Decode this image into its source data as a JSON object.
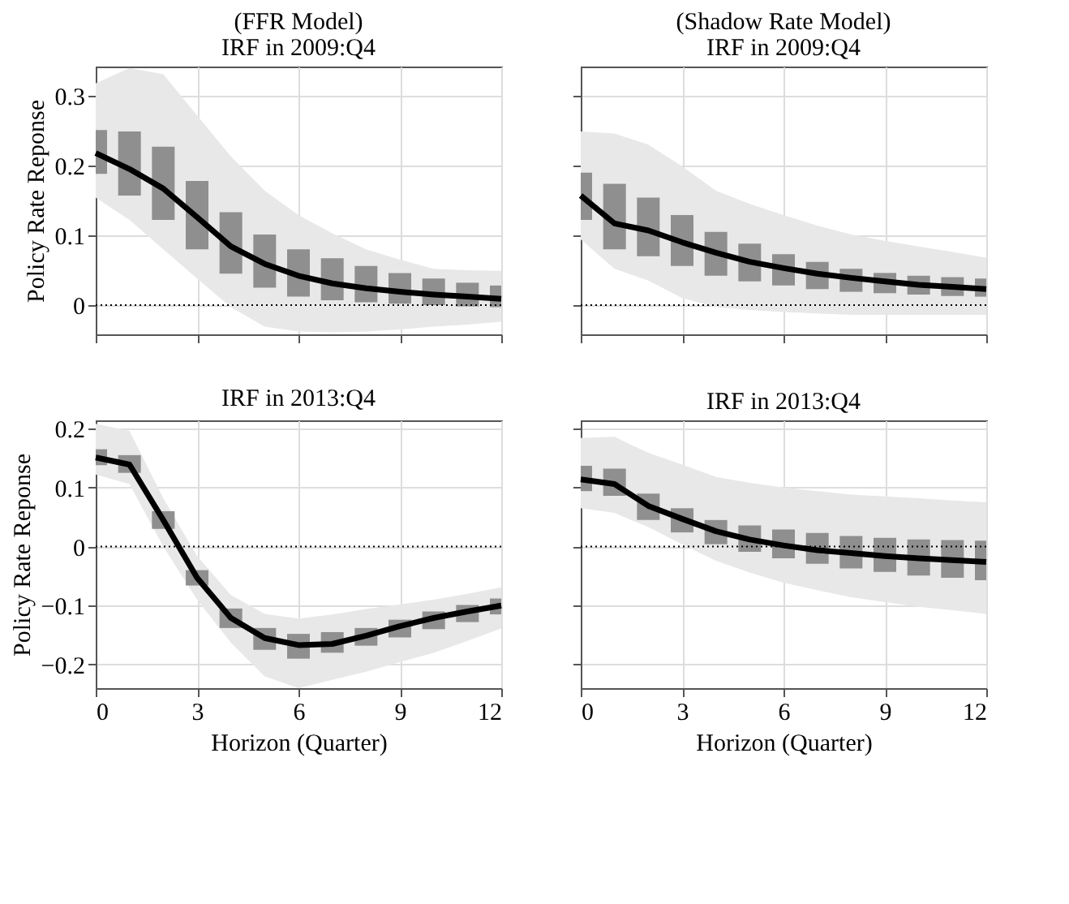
{
  "chart_data": [
    {
      "type": "line",
      "title": "(FFR Model)",
      "subtitle": "IRF in 2009:Q4",
      "ylabel": "Policy Rate Reponse",
      "x": [
        0,
        1,
        2,
        3,
        4,
        5,
        6,
        7,
        8,
        9,
        10,
        11,
        12
      ],
      "xlim": [
        0,
        12
      ],
      "xticks": [
        0,
        3,
        6,
        9,
        12
      ],
      "ylim": [
        -0.042,
        0.342
      ],
      "yticks": [
        0,
        0.1,
        0.2,
        0.3
      ],
      "grid": true,
      "tick_labels": "y",
      "line_style": "solid",
      "series": [
        {
          "type": "line",
          "color": "#000000",
          "values": [
            0.218,
            0.195,
            0.167,
            0.126,
            0.084,
            0.059,
            0.042,
            0.031,
            0.024,
            0.019,
            0.015,
            0.012,
            0.009
          ],
          "lower": [
            0.154,
            0.122,
            0.08,
            0.038,
            -0.003,
            -0.031,
            -0.038,
            -0.039,
            -0.038,
            -0.035,
            -0.031,
            -0.028,
            -0.024
          ],
          "upper": [
            0.318,
            0.34,
            0.331,
            0.272,
            0.213,
            0.164,
            0.129,
            0.103,
            0.08,
            0.065,
            0.052,
            0.05,
            0.049
          ],
          "errors": [
            [
              0.188,
              0.251
            ],
            [
              0.157,
              0.249
            ],
            [
              0.122,
              0.227
            ],
            [
              0.08,
              0.178
            ],
            [
              0.045,
              0.133
            ],
            [
              0.025,
              0.101
            ],
            [
              0.012,
              0.08
            ],
            [
              0.007,
              0.067
            ],
            [
              0.004,
              0.056
            ],
            [
              0.002,
              0.046
            ],
            [
              0.0,
              0.038
            ],
            [
              -0.002,
              0.032
            ],
            [
              -0.003,
              0.028
            ]
          ]
        }
      ],
      "ref_lines": [
        {
          "axis": "y",
          "value": 0,
          "color": "#000000",
          "line_style": "dotted"
        }
      ]
    },
    {
      "type": "line",
      "title": "(Shadow Rate Model)",
      "subtitle": "IRF in 2009:Q4",
      "x": [
        0,
        1,
        2,
        3,
        4,
        5,
        6,
        7,
        8,
        9,
        10,
        11,
        12
      ],
      "xlim": [
        0,
        12
      ],
      "xticks": [
        0,
        3,
        6,
        9,
        12
      ],
      "ylim": [
        -0.042,
        0.342
      ],
      "yticks": [
        0,
        0.1,
        0.2,
        0.3
      ],
      "grid": true,
      "tick_labels": false,
      "line_style": "solid",
      "series": [
        {
          "type": "line",
          "color": "#000000",
          "values": [
            0.157,
            0.117,
            0.107,
            0.09,
            0.075,
            0.062,
            0.053,
            0.045,
            0.039,
            0.034,
            0.029,
            0.026,
            0.023
          ],
          "lower": [
            0.094,
            0.052,
            0.035,
            0.01,
            -0.003,
            -0.007,
            -0.01,
            -0.012,
            -0.014,
            -0.014,
            -0.014,
            -0.014,
            -0.014
          ],
          "upper": [
            0.249,
            0.246,
            0.23,
            0.199,
            0.164,
            0.145,
            0.129,
            0.114,
            0.101,
            0.092,
            0.084,
            0.076,
            0.068
          ],
          "errors": [
            [
              0.122,
              0.19
            ],
            [
              0.08,
              0.174
            ],
            [
              0.07,
              0.154
            ],
            [
              0.056,
              0.129
            ],
            [
              0.042,
              0.105
            ],
            [
              0.034,
              0.088
            ],
            [
              0.028,
              0.073
            ],
            [
              0.023,
              0.062
            ],
            [
              0.019,
              0.052
            ],
            [
              0.017,
              0.046
            ],
            [
              0.015,
              0.042
            ],
            [
              0.013,
              0.04
            ],
            [
              0.012,
              0.038
            ]
          ]
        }
      ],
      "ref_lines": [
        {
          "axis": "y",
          "value": 0,
          "color": "#000000",
          "line_style": "dotted"
        }
      ]
    },
    {
      "type": "line",
      "title": "IRF in 2013:Q4",
      "xlabel": "Horizon (Quarter)",
      "ylabel": "Policy Rate Reponse",
      "x": [
        0,
        1,
        2,
        3,
        4,
        5,
        6,
        7,
        8,
        9,
        10,
        11,
        12
      ],
      "xlim": [
        0,
        12
      ],
      "xticks": [
        0,
        3,
        6,
        9,
        12
      ],
      "ylim": [
        -0.24,
        0.214
      ],
      "yticks": [
        -0.2,
        -0.1,
        0,
        0.1,
        0.2
      ],
      "grid": true,
      "line_style": "solid",
      "series": [
        {
          "type": "line",
          "color": "#000000",
          "values": [
            0.151,
            0.139,
            0.045,
            -0.053,
            -0.121,
            -0.155,
            -0.167,
            -0.165,
            -0.151,
            -0.135,
            -0.121,
            -0.11,
            -0.1
          ],
          "lower": [
            0.122,
            0.106,
            0.0,
            -0.09,
            -0.163,
            -0.22,
            -0.24,
            -0.226,
            -0.212,
            -0.196,
            -0.18,
            -0.16,
            -0.139
          ],
          "upper": [
            0.208,
            0.196,
            0.082,
            -0.016,
            -0.082,
            -0.114,
            -0.122,
            -0.115,
            -0.106,
            -0.098,
            -0.09,
            -0.08,
            -0.069
          ],
          "errors": [
            [
              0.138,
              0.165
            ],
            [
              0.125,
              0.155
            ],
            [
              0.03,
              0.06
            ],
            [
              -0.066,
              -0.04
            ],
            [
              -0.138,
              -0.105
            ],
            [
              -0.175,
              -0.138
            ],
            [
              -0.19,
              -0.148
            ],
            [
              -0.18,
              -0.145
            ],
            [
              -0.168,
              -0.138
            ],
            [
              -0.154,
              -0.124
            ],
            [
              -0.14,
              -0.11
            ],
            [
              -0.128,
              -0.099
            ],
            [
              -0.115,
              -0.088
            ]
          ]
        }
      ],
      "ref_lines": [
        {
          "axis": "y",
          "value": 0,
          "color": "#000000",
          "line_style": "dotted"
        }
      ]
    },
    {
      "type": "line",
      "title": "IRF in 2013:Q4",
      "xlabel": "Horizon (Quarter)",
      "x": [
        0,
        1,
        2,
        3,
        4,
        5,
        6,
        7,
        8,
        9,
        10,
        11,
        12
      ],
      "xlim": [
        0,
        12
      ],
      "xticks": [
        0,
        3,
        6,
        9,
        12
      ],
      "ylim": [
        -0.24,
        0.214
      ],
      "yticks": [
        -0.2,
        -0.1,
        0,
        0.1,
        0.2
      ],
      "grid": true,
      "tick_labels": "x",
      "line_style": "solid",
      "series": [
        {
          "type": "line",
          "color": "#000000",
          "values": [
            0.114,
            0.106,
            0.069,
            0.047,
            0.026,
            0.012,
            0.002,
            -0.006,
            -0.011,
            -0.016,
            -0.02,
            -0.023,
            -0.026
          ],
          "lower": [
            0.065,
            0.057,
            0.033,
            0.004,
            -0.024,
            -0.044,
            -0.061,
            -0.074,
            -0.086,
            -0.094,
            -0.102,
            -0.108,
            -0.114
          ],
          "upper": [
            0.184,
            0.186,
            0.159,
            0.139,
            0.118,
            0.108,
            0.1,
            0.094,
            0.088,
            0.085,
            0.082,
            0.078,
            0.075
          ],
          "errors": [
            [
              0.094,
              0.137
            ],
            [
              0.086,
              0.132
            ],
            [
              0.045,
              0.09
            ],
            [
              0.024,
              0.065
            ],
            [
              0.004,
              0.045
            ],
            [
              -0.009,
              0.036
            ],
            [
              -0.02,
              0.029
            ],
            [
              -0.029,
              0.023
            ],
            [
              -0.037,
              0.018
            ],
            [
              -0.043,
              0.015
            ],
            [
              -0.049,
              0.012
            ],
            [
              -0.053,
              0.011
            ],
            [
              -0.057,
              0.01
            ]
          ]
        }
      ],
      "ref_lines": [
        {
          "axis": "y",
          "value": 0,
          "color": "#000000",
          "line_style": "dotted"
        }
      ]
    }
  ]
}
